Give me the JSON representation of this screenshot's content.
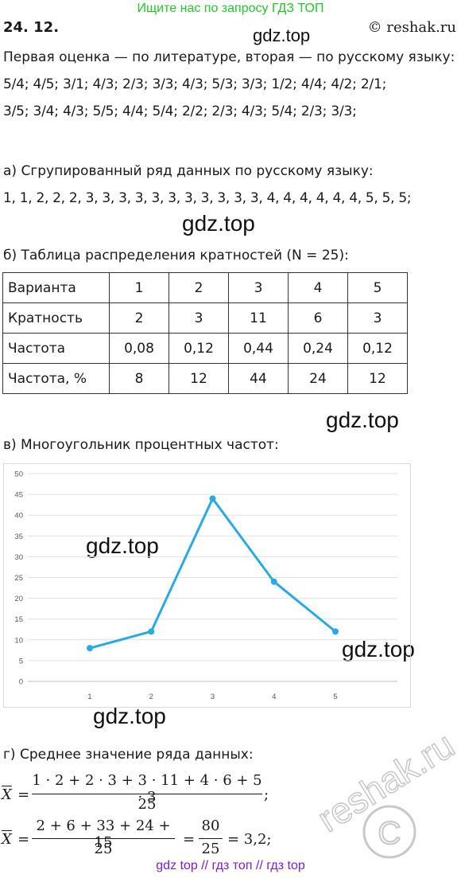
{
  "header": {
    "banner": "Ищите нас по запросу ГДЗ ТОП",
    "problem_number": "24. 12.",
    "copyright": "© reshak.ru"
  },
  "watermarks": {
    "gdz": "gdz.top",
    "reshak": "reshak.ru"
  },
  "intro": {
    "line1": "Первая оценка — по литературе, вторая — по русскому языку:",
    "line2": "5/4;  4/5;  3/1;  4/3;  2/3;  3/3;  4/3;  5/3;  3/3;  1/2;  4/4;  4/2;  2/1;",
    "line3": "3/5;  3/4;  4/3;  5/5;  4/4;  5/4;  2/2;  2/3;  4/3;  5/4;  2/3;  3/3;"
  },
  "part_a": {
    "heading": "а) Сгрупированный ряд данных по русскому языку:",
    "series": "1, 1, 2, 2, 2, 3, 3, 3, 3, 3, 3, 3, 3, 3, 3, 3, 4, 4, 4, 4, 4, 4, 5, 5, 5;"
  },
  "part_b": {
    "heading": "б) Таблица распределения кратностей (N = 25):",
    "rows": [
      {
        "label": "Варианта",
        "cells": [
          "1",
          "2",
          "3",
          "4",
          "5"
        ]
      },
      {
        "label": "Кратность",
        "cells": [
          "2",
          "3",
          "11",
          "6",
          "3"
        ]
      },
      {
        "label": "Частота",
        "cells": [
          "0,08",
          "0,12",
          "0,44",
          "0,24",
          "0,12"
        ]
      },
      {
        "label": "Частота, %",
        "cells": [
          "8",
          "12",
          "44",
          "24",
          "12"
        ]
      }
    ]
  },
  "part_v": {
    "heading": "в) Многоугольник процентных частот:"
  },
  "chart_data": {
    "type": "line",
    "x": [
      1,
      2,
      3,
      4,
      5
    ],
    "values": [
      8,
      12,
      44,
      24,
      12
    ],
    "xlim": [
      1,
      5
    ],
    "ylim": [
      0,
      50
    ],
    "y_ticks": [
      "0",
      "5",
      "10",
      "15",
      "20",
      "25",
      "30",
      "35",
      "40",
      "45",
      "50"
    ],
    "x_ticks": [
      "1",
      "2",
      "3",
      "4",
      "5"
    ],
    "grid": "horizontal",
    "color": "#29abe2",
    "title": "",
    "xlabel": "",
    "ylabel": ""
  },
  "part_g": {
    "heading": "г) Среднее значение ряда данных:",
    "xbar": "X",
    "eq": "=",
    "num1": "1 · 2 + 2 · 3 + 3 · 11 + 4 · 6 + 5 · 3",
    "den1": "25",
    "end1": ";",
    "num2": "2 + 6 + 33 + 24 + 15",
    "den2": "25",
    "num3": "80",
    "den3": "25",
    "result": "= 3,2;"
  },
  "footer": {
    "text": "gdz top  //  гдз топ  //  гдз top"
  }
}
